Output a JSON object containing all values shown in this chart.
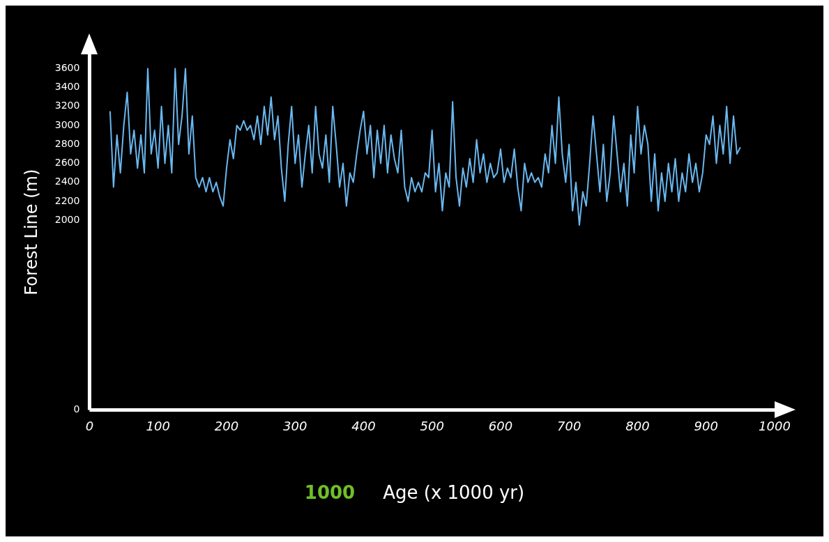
{
  "chart_data": {
    "type": "line",
    "xlabel": "Age (x 1000 yr)",
    "ylabel": "Forest Line (m)",
    "annotations": [
      "1000"
    ],
    "xlim": [
      0,
      1000
    ],
    "xticks": [
      0,
      100,
      200,
      300,
      400,
      500,
      600,
      700,
      800,
      900,
      1000
    ],
    "ylim": [
      0,
      3750
    ],
    "yticks": [
      0,
      2000,
      2200,
      2400,
      2600,
      2800,
      3000,
      3200,
      3400,
      3600
    ],
    "grid": false,
    "legend": false,
    "marker": "none",
    "line_style": "solid",
    "series": [
      {
        "color": "#6ab8f0",
        "x": [
          30,
          35,
          40,
          45,
          50,
          55,
          60,
          65,
          70,
          75,
          80,
          85,
          90,
          95,
          100,
          105,
          110,
          115,
          120,
          125,
          130,
          135,
          140,
          145,
          150,
          155,
          160,
          165,
          170,
          175,
          180,
          185,
          190,
          195,
          200,
          205,
          210,
          215,
          220,
          225,
          230,
          235,
          240,
          245,
          250,
          255,
          260,
          265,
          270,
          275,
          280,
          285,
          290,
          295,
          300,
          305,
          310,
          315,
          320,
          325,
          330,
          335,
          340,
          345,
          350,
          355,
          360,
          365,
          370,
          375,
          380,
          385,
          390,
          395,
          400,
          405,
          410,
          415,
          420,
          425,
          430,
          435,
          440,
          445,
          450,
          455,
          460,
          465,
          470,
          475,
          480,
          485,
          490,
          495,
          500,
          505,
          510,
          515,
          520,
          525,
          530,
          535,
          540,
          545,
          550,
          555,
          560,
          565,
          570,
          575,
          580,
          585,
          590,
          595,
          600,
          605,
          610,
          615,
          620,
          625,
          630,
          635,
          640,
          645,
          650,
          655,
          660,
          665,
          670,
          675,
          680,
          685,
          690,
          695,
          700,
          705,
          710,
          715,
          720,
          725,
          730,
          735,
          740,
          745,
          750,
          755,
          760,
          765,
          770,
          775,
          780,
          785,
          790,
          795,
          800,
          805,
          810,
          815,
          820,
          825,
          830,
          835,
          840,
          845,
          850,
          855,
          860,
          865,
          870,
          875,
          880,
          885,
          890,
          895,
          900,
          905,
          910,
          915,
          920,
          925,
          930,
          935,
          940,
          945,
          950
        ],
        "values": [
          3150,
          2350,
          2900,
          2500,
          3000,
          3350,
          2700,
          2950,
          2550,
          2900,
          2500,
          3600,
          2700,
          2950,
          2550,
          3200,
          2600,
          3000,
          2500,
          3600,
          2800,
          3100,
          3600,
          2700,
          3100,
          2450,
          2350,
          2450,
          2300,
          2450,
          2300,
          2400,
          2250,
          2150,
          2550,
          2850,
          2650,
          3000,
          2950,
          3050,
          2950,
          3000,
          2850,
          3100,
          2800,
          3200,
          2900,
          3300,
          2850,
          3100,
          2550,
          2200,
          2800,
          3200,
          2600,
          2900,
          2350,
          2700,
          3000,
          2500,
          3200,
          2700,
          2550,
          2900,
          2400,
          3200,
          2800,
          2350,
          2600,
          2150,
          2500,
          2400,
          2700,
          2950,
          3150,
          2700,
          3000,
          2450,
          2950,
          2600,
          3000,
          2500,
          2900,
          2650,
          2500,
          2950,
          2350,
          2200,
          2450,
          2300,
          2400,
          2300,
          2500,
          2450,
          2950,
          2300,
          2600,
          2100,
          2500,
          2350,
          3250,
          2450,
          2150,
          2550,
          2350,
          2650,
          2400,
          2850,
          2500,
          2700,
          2400,
          2600,
          2450,
          2500,
          2750,
          2400,
          2550,
          2450,
          2750,
          2350,
          2100,
          2600,
          2400,
          2500,
          2400,
          2450,
          2350,
          2700,
          2500,
          3000,
          2600,
          3300,
          2700,
          2400,
          2800,
          2100,
          2400,
          1950,
          2300,
          2150,
          2600,
          3100,
          2700,
          2300,
          2800,
          2200,
          2500,
          3100,
          2700,
          2300,
          2600,
          2150,
          2900,
          2500,
          3200,
          2700,
          3000,
          2800,
          2200,
          2700,
          2100,
          2500,
          2200,
          2600,
          2300,
          2650,
          2200,
          2500,
          2300,
          2700,
          2400,
          2600,
          2300,
          2500,
          2900,
          2800,
          3100,
          2600,
          3000,
          2700,
          3200,
          2600,
          3100,
          2700,
          2770
        ]
      }
    ]
  }
}
